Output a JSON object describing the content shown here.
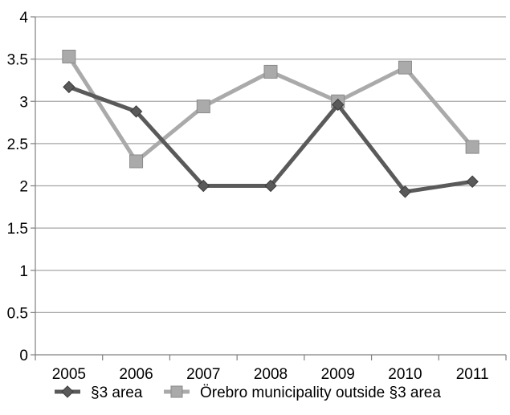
{
  "chart_data": {
    "type": "line",
    "categories": [
      "2005",
      "2006",
      "2007",
      "2008",
      "2009",
      "2010",
      "2011"
    ],
    "series": [
      {
        "name": "§3 area",
        "values": [
          3.17,
          2.88,
          2.0,
          2.0,
          2.96,
          1.93,
          2.05
        ],
        "color": "#5a5a5a",
        "marker": "diamond"
      },
      {
        "name": "Örebro municipality outside §3 area",
        "values": [
          3.53,
          2.29,
          2.94,
          3.35,
          3.0,
          3.4,
          2.46
        ],
        "color": "#aaaaaa",
        "marker": "square"
      }
    ],
    "ylim": [
      0,
      4
    ],
    "yticks": [
      "0",
      "0.5",
      "1",
      "1.5",
      "2",
      "2.5",
      "3",
      "3.5",
      "4"
    ],
    "grid": true,
    "legend_position": "bottom"
  }
}
